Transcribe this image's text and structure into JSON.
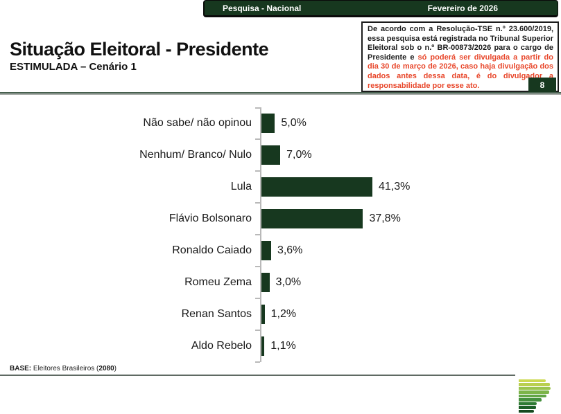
{
  "header": {
    "left_label": "Pesquisa - Nacional",
    "right_label": "Fevereiro de 2026"
  },
  "title": {
    "main": "Situação Eleitoral - Presidente",
    "subtitle": "ESTIMULADA – Cenário 1"
  },
  "legal_notice": {
    "black_text": "De acordo com a Resolução-TSE n.º 23.600/2019, essa pesquisa está registrada no Tribunal Superior Eleitoral sob o n.º BR-00873/2026 para o cargo de Presidente e ",
    "red_text": "só poderá ser divulgada a partir do dia 30 de março de 2026, caso haja divulgação dos dados antes dessa data, é do divulgador a responsabilidade por esse ato.",
    "red_color": "#e8472b"
  },
  "page_number": "8",
  "chart_data": {
    "type": "bar",
    "orientation": "horizontal",
    "categories": [
      "Não sabe/ não opinou",
      "Nenhum/ Branco/ Nulo",
      "Lula",
      "Flávio Bolsonaro",
      "Ronaldo Caiado",
      "Romeu Zema",
      "Renan Santos",
      "Aldo Rebelo"
    ],
    "values": [
      5.0,
      7.0,
      41.3,
      37.8,
      3.6,
      3.0,
      1.2,
      1.1
    ],
    "value_labels": [
      "5,0%",
      "7,0%",
      "41,3%",
      "37,8%",
      "3,6%",
      "3,0%",
      "1,2%",
      "1,1%"
    ],
    "title": "",
    "xlabel": "",
    "ylabel": "",
    "xlim": [
      0,
      45
    ],
    "grid": false,
    "legend": "none",
    "bar_color": "#17381f",
    "axis_color": "#b9b9b9"
  },
  "footer": {
    "base_prefix": "BASE:",
    "base_mid": " Eleitores Brasileiros (",
    "base_count": "2080",
    "base_suffix": ")"
  },
  "logo": {
    "name": "parana-pesquisas-logo",
    "stripe_widths": [
      39,
      45,
      46,
      44,
      40,
      33,
      26,
      25,
      22
    ],
    "stripe_colors": [
      "#ccd952",
      "#b9cf4f",
      "#9ac44e",
      "#7cb449",
      "#61a545",
      "#45903e",
      "#2f7b35",
      "#1d5f28",
      "#164a20"
    ]
  },
  "colors": {
    "dark_green": "#17381f",
    "divider_green": "#47604f"
  }
}
